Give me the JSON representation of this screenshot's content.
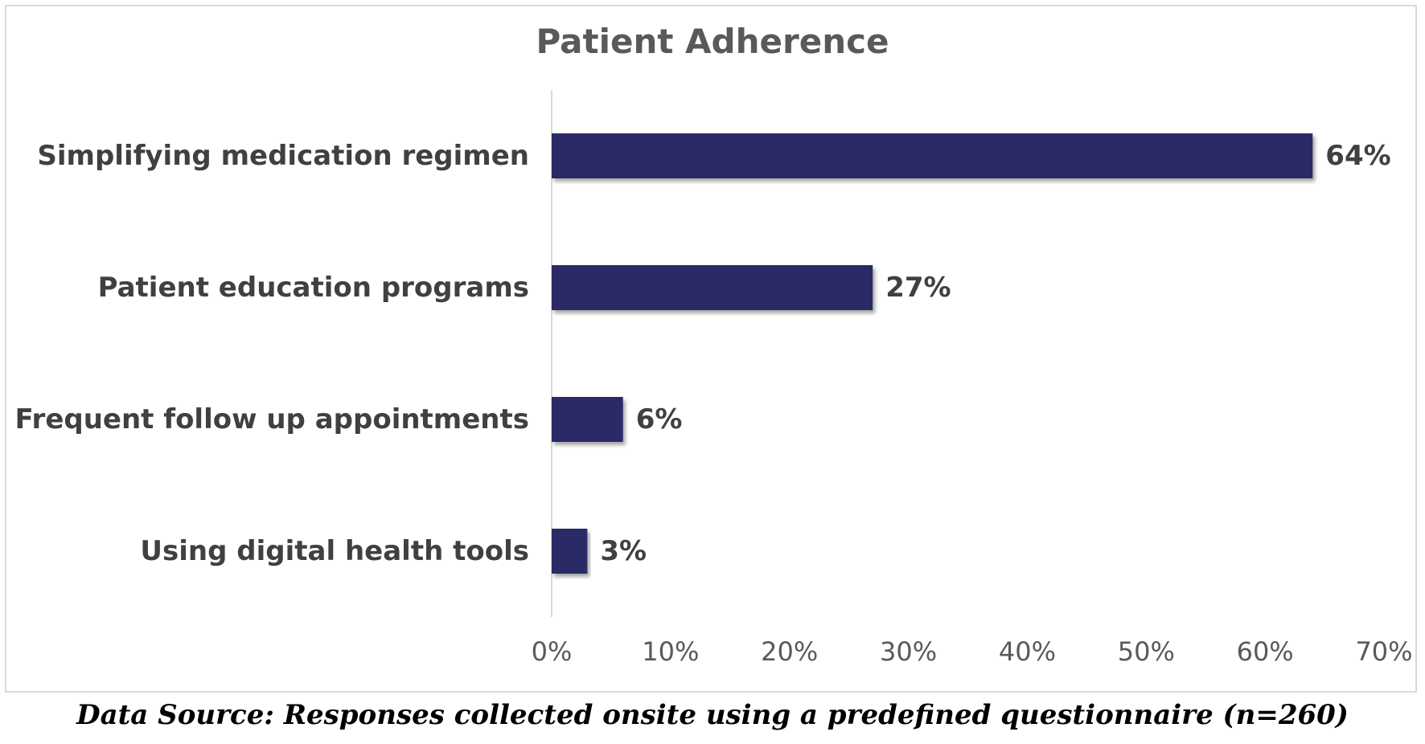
{
  "chart_data": {
    "type": "bar",
    "orientation": "horizontal",
    "title": "Patient Adherence",
    "categories": [
      "Simplifying medication regimen",
      "Patient education programs",
      "Frequent follow up appointments",
      "Using digital health tools"
    ],
    "values": [
      64,
      27,
      6,
      3
    ],
    "value_labels": [
      "64%",
      "27%",
      "6%",
      "3%"
    ],
    "xlim": [
      0,
      70
    ],
    "x_ticks": [
      0,
      10,
      20,
      30,
      40,
      50,
      60,
      70
    ],
    "x_tick_labels": [
      "0%",
      "10%",
      "20%",
      "30%",
      "40%",
      "50%",
      "60%",
      "70%"
    ],
    "xlabel": "",
    "ylabel": "",
    "grid": false,
    "legend": "none",
    "bar_color": "#2b2a66"
  },
  "footer": {
    "source_text": "Data Source: Responses collected onsite using a predefined questionnaire (n=260)"
  }
}
